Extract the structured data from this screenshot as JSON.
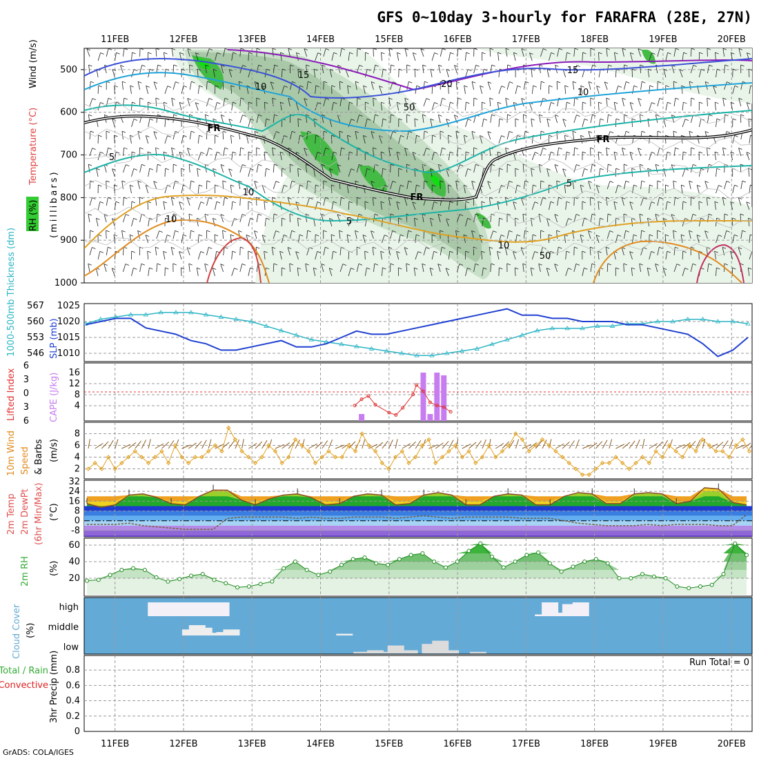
{
  "title": "GFS 0~10day 3-hourly for FARAFRA (28E, 27N)",
  "footer": "GrADS: COLA/IGES",
  "run_total": "Run Total = 0",
  "colors": {
    "rh_green": "#33cc33",
    "temp": "#e08a1e",
    "wind_cyan": "#1ab3a6",
    "thick": "#2bb4c4",
    "slp": "#1f3fd0",
    "cape": "#c77df0",
    "li": "#e03030",
    "cloud": "#64aad6",
    "precip_total": "#00aa00",
    "precip_conv": "#e02020"
  },
  "chart_data": [
    {
      "type": "heatmap",
      "panel": "upper-air",
      "ylabel_parts": [
        "RH (%)",
        "Temperature (°C)",
        "Wind (m/s)"
      ],
      "ylabel_units": "(millibars)",
      "yticks": [
        "500",
        "600",
        "700",
        "800",
        "900",
        "1000"
      ],
      "xticks": [
        "11FEB",
        "12FEB",
        "13FEB",
        "14FEB",
        "15FEB",
        "16FEB",
        "17FEB",
        "18FEB",
        "19FEB",
        "20FEB"
      ],
      "freezing_label": "FR",
      "contour_labels": [
        {
          "text": "15",
          "series": "wind"
        },
        {
          "text": "10",
          "series": "wind"
        },
        {
          "text": "5",
          "series": "wind"
        },
        {
          "text": "-20",
          "series": "temp"
        },
        {
          "text": "15",
          "series": "wind"
        },
        {
          "text": "10",
          "series": "wind"
        },
        {
          "text": "5",
          "series": "wind"
        },
        {
          "text": "10",
          "series": "temp"
        },
        {
          "text": "5",
          "series": "wind"
        },
        {
          "text": "10",
          "series": "temp"
        },
        {
          "text": "50",
          "series": "rh"
        },
        {
          "text": "50",
          "series": "rh"
        },
        {
          "text": "10",
          "series": "rh"
        }
      ]
    },
    {
      "type": "line",
      "panel": "thickness-slp",
      "ylabel_left": "1000-500mb Thickness (dm)",
      "ylabel_right": "SLP (mb)",
      "thick_ticks": [
        "567",
        "560",
        "553",
        "546"
      ],
      "slp_ticks": [
        "1025",
        "1020",
        "1015",
        "1010"
      ],
      "series": [
        {
          "name": "Thickness",
          "values": [
            559,
            561,
            562,
            563,
            563,
            564,
            564,
            564,
            563,
            562,
            561,
            560,
            558,
            556,
            554,
            552,
            551,
            550,
            549,
            548,
            547,
            546,
            545,
            545,
            546,
            547,
            548,
            550,
            552,
            554,
            556,
            557,
            557,
            557,
            558,
            558,
            559,
            559,
            560,
            560,
            561,
            561,
            560,
            560,
            559
          ]
        },
        {
          "name": "SLP",
          "values": [
            1019,
            1020,
            1021,
            1021,
            1018,
            1017,
            1016,
            1014,
            1013,
            1011,
            1011,
            1012,
            1013,
            1014,
            1012,
            1012,
            1013,
            1015,
            1017,
            1016,
            1016,
            1017,
            1018,
            1019,
            1020,
            1021,
            1022,
            1023,
            1024,
            1022,
            1022,
            1021,
            1021,
            1020,
            1020,
            1020,
            1019,
            1019,
            1018,
            1017,
            1016,
            1013,
            1009,
            1011,
            1015
          ]
        }
      ]
    },
    {
      "type": "bar",
      "panel": "cape-li",
      "ylabel_left": "Lifted Index",
      "ylabel_right": "CAPE (J/kg)",
      "li_ticks": [
        "-6",
        "-3",
        "0",
        "3",
        "6"
      ],
      "cape_ticks": [
        "16",
        "12",
        "8",
        "4"
      ],
      "series": [
        {
          "name": "CAPE",
          "x_days": [
            14.6,
            15.5,
            15.6,
            15.7,
            15.8
          ],
          "values": [
            1,
            16,
            1,
            16,
            15
          ]
        },
        {
          "name": "Lifted Index",
          "x_days": [
            14.5,
            14.6,
            14.7,
            14.8,
            15.0,
            15.1,
            15.2,
            15.35,
            15.4,
            15.5,
            15.6,
            15.7,
            15.8,
            15.9
          ],
          "values": [
            5.4,
            4.6,
            4.2,
            5.3,
            6.3,
            6.6,
            5.7,
            4.0,
            2.8,
            3.6,
            5.0,
            5.4,
            5.6,
            6.2
          ]
        }
      ]
    },
    {
      "type": "line",
      "panel": "10m-wind",
      "ylabel": "10m Wind Speed & Barbs (m/s)",
      "yticks": [
        "8",
        "6",
        "4",
        "2"
      ],
      "series": [
        {
          "name": "10m Wind Speed",
          "values": [
            2,
            3,
            2,
            4,
            2,
            3,
            4,
            5,
            4,
            3,
            4,
            5,
            3,
            6,
            4,
            3,
            4,
            4,
            5,
            6,
            5,
            9,
            7,
            5,
            4,
            3,
            4,
            6,
            5,
            3,
            4,
            7,
            6,
            5,
            3,
            4,
            5,
            4,
            4,
            6,
            5,
            8,
            6,
            5,
            3,
            2,
            4,
            5,
            3,
            4,
            6,
            7,
            3,
            4,
            5,
            6,
            4,
            5,
            3,
            4,
            6,
            4,
            5,
            6,
            8,
            7,
            5,
            6,
            7,
            6,
            5,
            4,
            3,
            2,
            1,
            1,
            2,
            3,
            3,
            4,
            3,
            2,
            3,
            4,
            3,
            5,
            4,
            6,
            5,
            4,
            6,
            5,
            7,
            6,
            5,
            5,
            4,
            6,
            7,
            5
          ]
        }
      ]
    },
    {
      "type": "area",
      "panel": "2m-temp",
      "ylabel": "2m Temp 2m DewPt (6hr Min/Max) (°C)",
      "yticks": [
        "32",
        "24",
        "16",
        "8",
        "0",
        "-8"
      ],
      "series": [
        {
          "name": "2m Temp",
          "values": [
            14,
            11,
            13,
            21,
            22,
            19,
            14,
            13,
            20,
            25,
            25,
            17,
            13,
            18,
            21,
            22,
            19,
            13,
            14,
            20,
            22,
            21,
            13,
            14,
            21,
            23,
            21,
            13,
            13,
            20,
            22,
            21,
            13,
            13,
            20,
            23,
            22,
            14,
            14,
            22,
            23,
            22,
            14,
            16,
            27,
            26,
            15,
            13
          ]
        },
        {
          "name": "2m DewPt",
          "values": [
            -3,
            -3,
            -3,
            -2,
            -4,
            -5,
            -6,
            -7,
            -7,
            -7,
            2,
            3,
            3,
            3,
            3,
            2,
            3,
            2,
            2,
            3,
            3,
            3,
            2,
            3,
            4,
            3,
            2,
            3,
            3,
            3,
            3,
            2,
            2,
            2,
            0,
            -2,
            -3,
            -4,
            -4,
            -4,
            -3,
            -4,
            -3,
            -3,
            -3,
            -4,
            -4,
            5
          ]
        }
      ]
    },
    {
      "type": "area",
      "panel": "2m-rh",
      "ylabel": "2m RH (%)",
      "yticks": [
        "60",
        "40",
        "20"
      ],
      "series": [
        {
          "name": "2m RH",
          "values": [
            17,
            18,
            24,
            30,
            32,
            30,
            21,
            16,
            19,
            23,
            25,
            18,
            14,
            9,
            10,
            13,
            16,
            32,
            40,
            30,
            24,
            28,
            36,
            43,
            45,
            38,
            36,
            43,
            48,
            50,
            40,
            33,
            40,
            53,
            62,
            46,
            33,
            40,
            48,
            51,
            38,
            28,
            34,
            40,
            43,
            38,
            20,
            20,
            25,
            22,
            20,
            10,
            8,
            10,
            12,
            25,
            62,
            48
          ]
        }
      ]
    },
    {
      "type": "bar",
      "panel": "cloud-cover",
      "ylabel": "Cloud Cover (%)",
      "levels": [
        "high",
        "middle",
        "low"
      ],
      "series": [
        {
          "name": "high",
          "x_days": [
            11.6,
            11.8,
            12.0,
            12.2,
            12.4,
            12.55,
            17.25,
            17.35,
            17.5,
            17.65,
            17.8
          ],
          "values": [
            80,
            80,
            80,
            80,
            80,
            80,
            10,
            80,
            20,
            70,
            80
          ]
        },
        {
          "name": "middle",
          "x_days": [
            12.1,
            12.2,
            12.3,
            12.4,
            12.5,
            12.6,
            12.7,
            14.35
          ],
          "values": [
            35,
            60,
            45,
            15,
            15,
            20,
            35,
            10
          ]
        },
        {
          "name": "low",
          "x_days": [
            14.6,
            14.7,
            14.8,
            15.0,
            15.1,
            15.3,
            15.6,
            15.75,
            15.9,
            16.3
          ],
          "values": [
            10,
            10,
            20,
            10,
            50,
            20,
            60,
            80,
            20,
            10
          ]
        }
      ]
    },
    {
      "type": "bar",
      "panel": "precip",
      "ylabel": "3hr Precip (mm)",
      "ylabel_side": [
        "Total / Rain",
        "Convective"
      ],
      "yticks": [
        "0.8",
        "0.6",
        "0.4",
        "0.2",
        "0"
      ],
      "series": [
        {
          "name": "Total",
          "values": []
        },
        {
          "name": "Convective",
          "values": []
        }
      ]
    }
  ]
}
